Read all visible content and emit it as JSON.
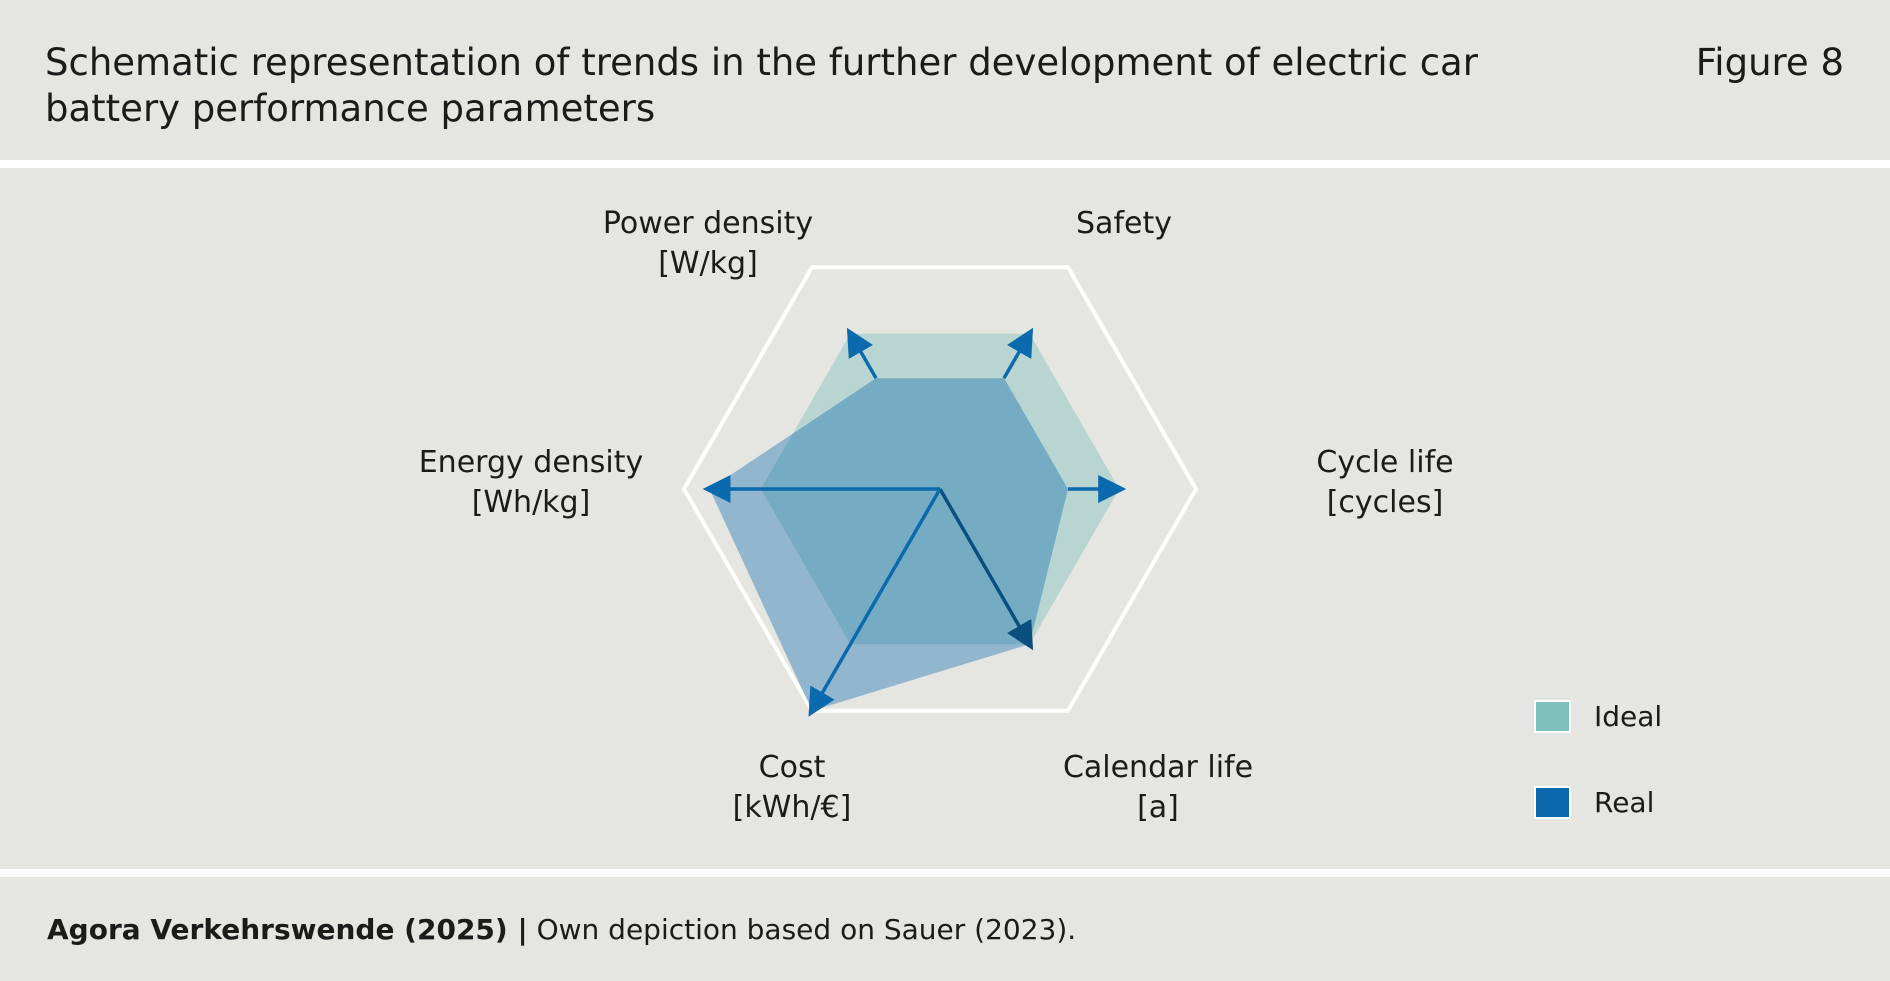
{
  "header": {
    "title": "Schematic representation of trends in the further development of electric car battery performance parameters",
    "figure_label": "Figure 8"
  },
  "chart_data": {
    "type": "radar",
    "axes": [
      {
        "key": "power",
        "lines": [
          "Power density",
          "[W/kg]"
        ]
      },
      {
        "key": "safety",
        "lines": [
          "Safety"
        ]
      },
      {
        "key": "cycle",
        "lines": [
          "Cycle life",
          "[cycles]"
        ]
      },
      {
        "key": "calendar",
        "lines": [
          "Calendar life",
          "[a]"
        ]
      },
      {
        "key": "cost",
        "lines": [
          "Cost",
          "[kWh/€]"
        ]
      },
      {
        "key": "energy",
        "lines": [
          "Energy density",
          "[Wh/kg]"
        ]
      }
    ],
    "scale_max": 1.0,
    "series": [
      {
        "name": "Ideal",
        "color": "#7cbfbd",
        "values": [
          0.7,
          0.7,
          0.7,
          0.7,
          0.7,
          0.7
        ]
      },
      {
        "name": "Real",
        "color": "#0a6aad",
        "values": [
          0.5,
          0.5,
          0.5,
          0.7,
          1.0,
          0.9
        ]
      }
    ],
    "arrows": [
      {
        "axis": "power",
        "from": 0.5,
        "to": 0.7,
        "color": "#0a6aad"
      },
      {
        "axis": "safety",
        "from": 0.5,
        "to": 0.7,
        "color": "#0a6aad"
      },
      {
        "axis": "cycle",
        "from": 0.5,
        "to": 0.7,
        "color": "#0a6aad"
      },
      {
        "axis": "calendar",
        "from": 0.0,
        "to": 0.7,
        "color": "#0a4f80"
      },
      {
        "axis": "cost",
        "from": 0.0,
        "to": 1.0,
        "color": "#0a6aad"
      },
      {
        "axis": "energy",
        "from": 0.0,
        "to": 0.9,
        "color": "#0a6aad"
      }
    ],
    "grid": true,
    "legend_position": "bottom-right"
  },
  "footer": {
    "source_bold": "Agora Verkehrswende (2025) |",
    "source_text": " Own depiction based on Sauer (2023)."
  }
}
